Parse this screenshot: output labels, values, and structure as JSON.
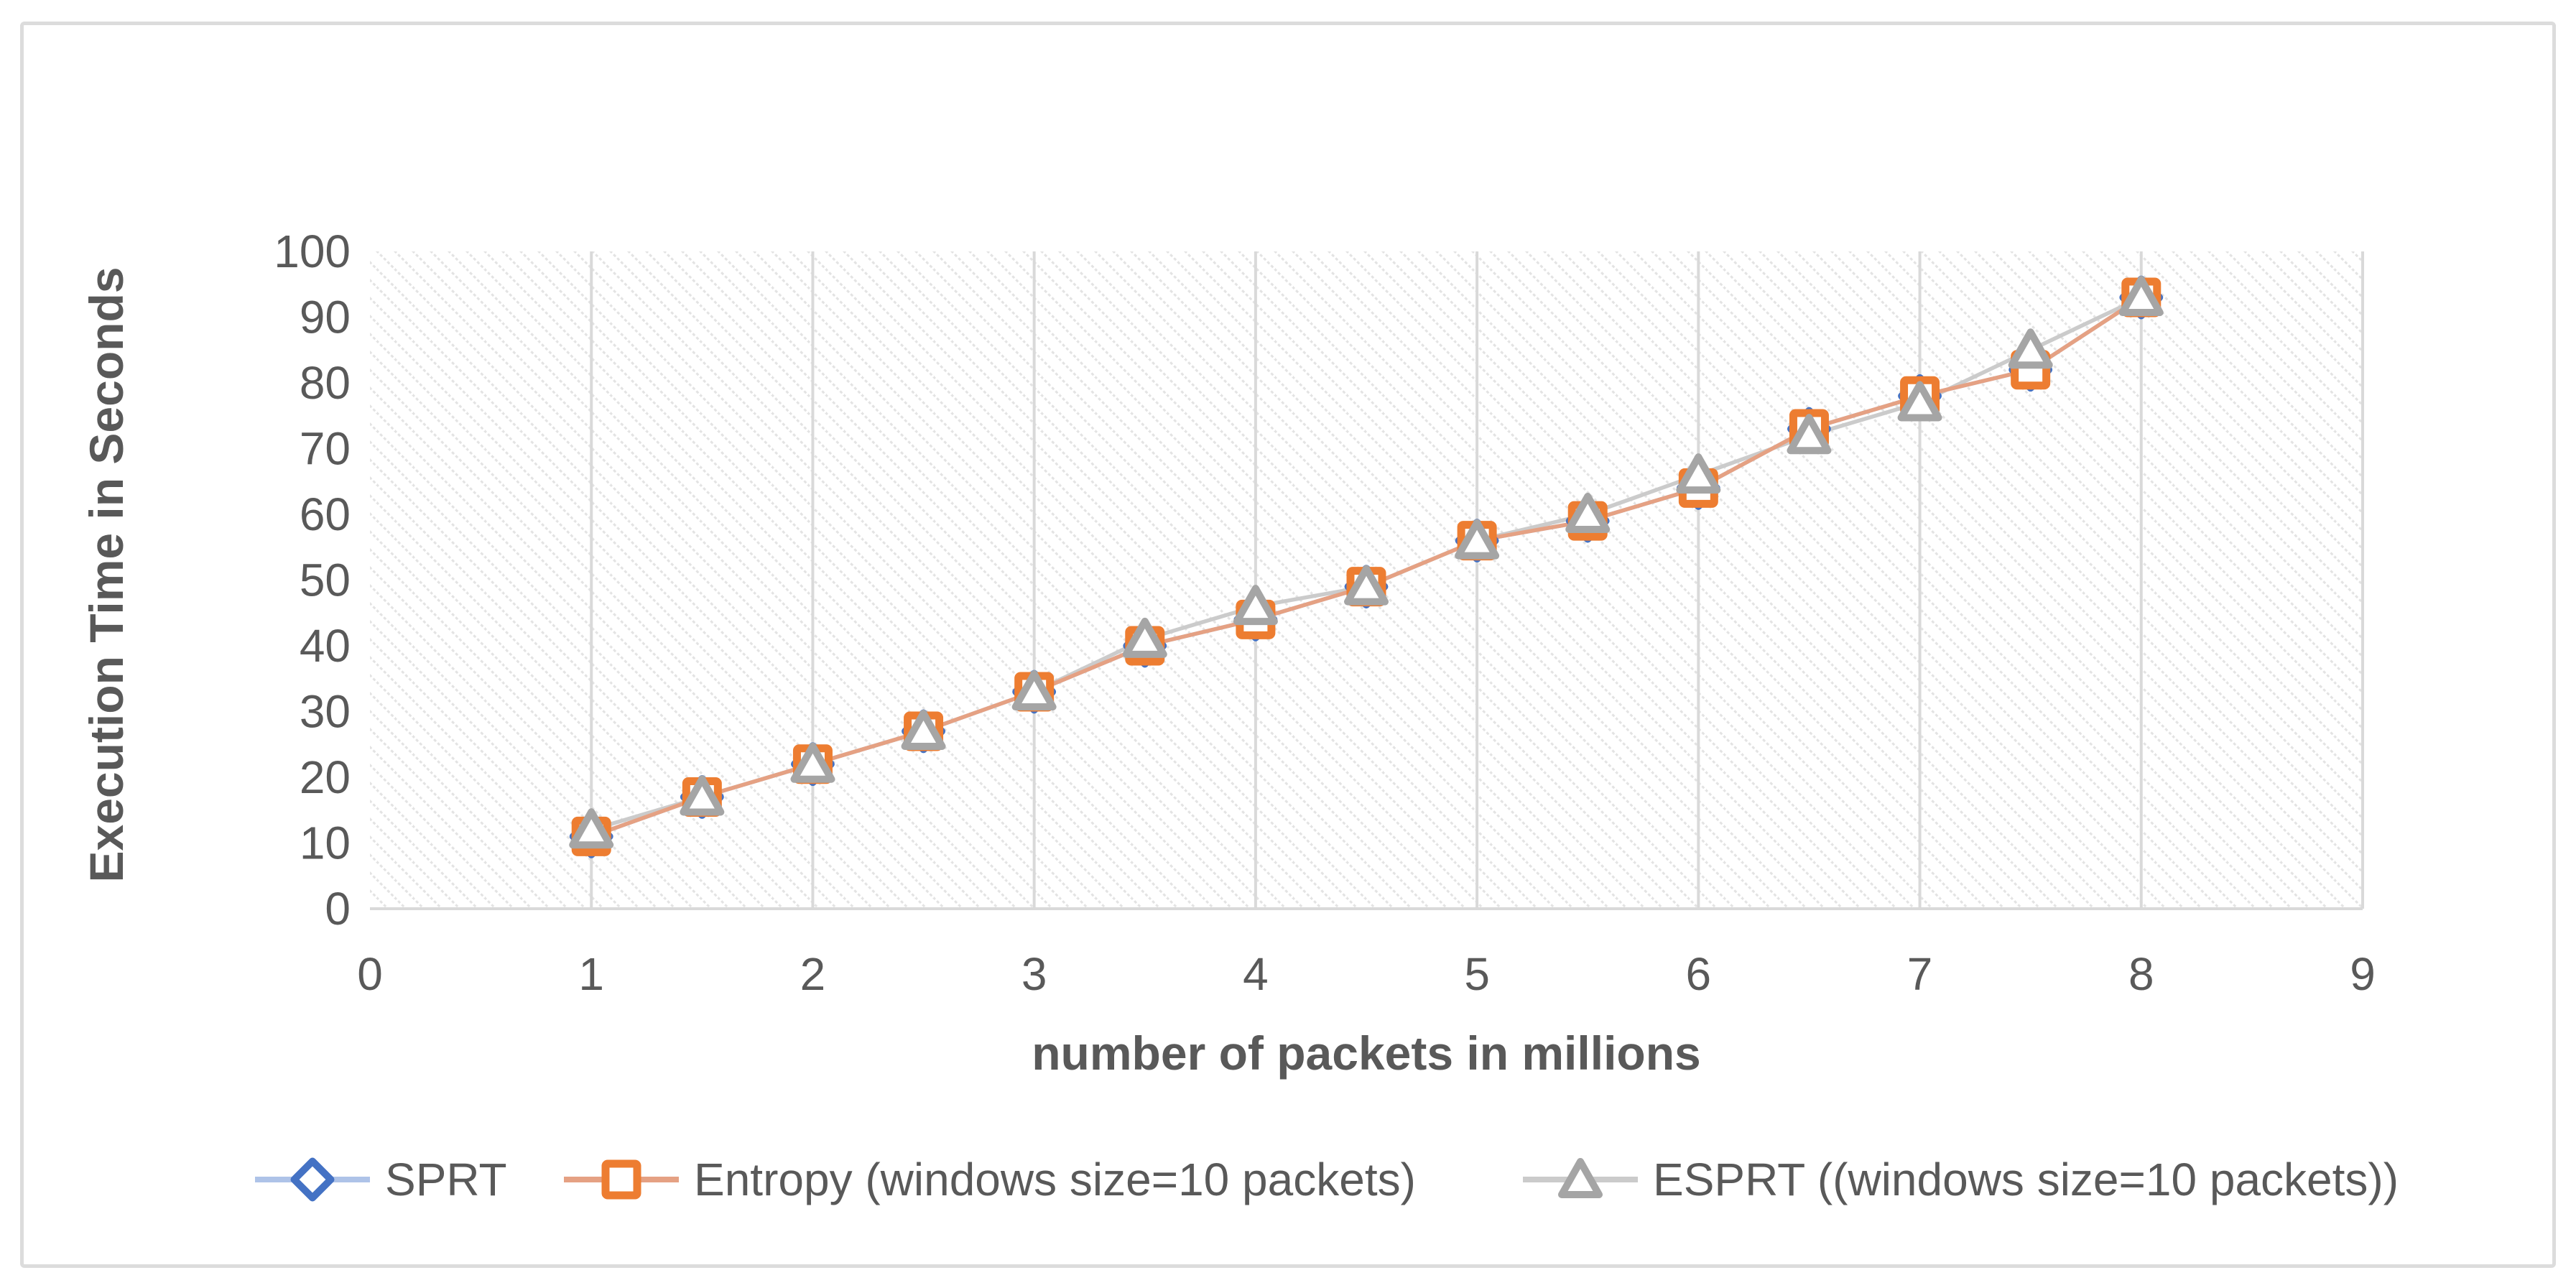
{
  "figure": {
    "background_color": "#FFFFFF",
    "border_color": "#DCDCDC",
    "text_color": "#595959",
    "gridline_color": "#D9D9D9",
    "plot_pattern_color": "#E3E3E3"
  },
  "chart_data": {
    "type": "line",
    "title": "",
    "xlabel": "number of packets in millions",
    "ylabel": "Execution Time in Seconds",
    "xlim": [
      0,
      9
    ],
    "ylim": [
      0,
      100
    ],
    "x_ticks": [
      0,
      1,
      2,
      3,
      4,
      5,
      6,
      7,
      8,
      9
    ],
    "y_ticks": [
      0,
      10,
      20,
      30,
      40,
      50,
      60,
      70,
      80,
      90,
      100
    ],
    "grid": "vertical-major-only",
    "plot_background": "light diagonal hatch pattern",
    "legend_position": "bottom",
    "x": [
      1,
      1.5,
      2,
      2.5,
      3,
      3.5,
      4,
      4.5,
      5,
      5.5,
      6,
      6.5,
      7,
      7.5,
      8
    ],
    "series": [
      {
        "name": "SPRT",
        "marker": "diamond",
        "marker_color": "#4472C4",
        "line_color": "#AEC3E8",
        "values": [
          11,
          17,
          22,
          27,
          33,
          40,
          44,
          49,
          56,
          59,
          64,
          73,
          78,
          82,
          93
        ]
      },
      {
        "name": "Entropy (windows size=10 packets)",
        "marker": "square",
        "marker_color": "#ED7D31",
        "line_color": "#E5A183",
        "values": [
          11,
          17,
          22,
          27,
          33,
          40,
          44,
          49,
          56,
          59,
          64,
          73,
          78,
          82,
          93
        ]
      },
      {
        "name": "ESPRT ((windows size=10 packets))",
        "marker": "triangle",
        "marker_color": "#A5A5A5",
        "line_color": "#CBCBCB",
        "values": [
          12,
          17,
          22,
          27,
          33,
          41,
          46,
          49,
          56,
          60,
          66,
          72,
          77,
          85,
          93
        ]
      }
    ]
  }
}
